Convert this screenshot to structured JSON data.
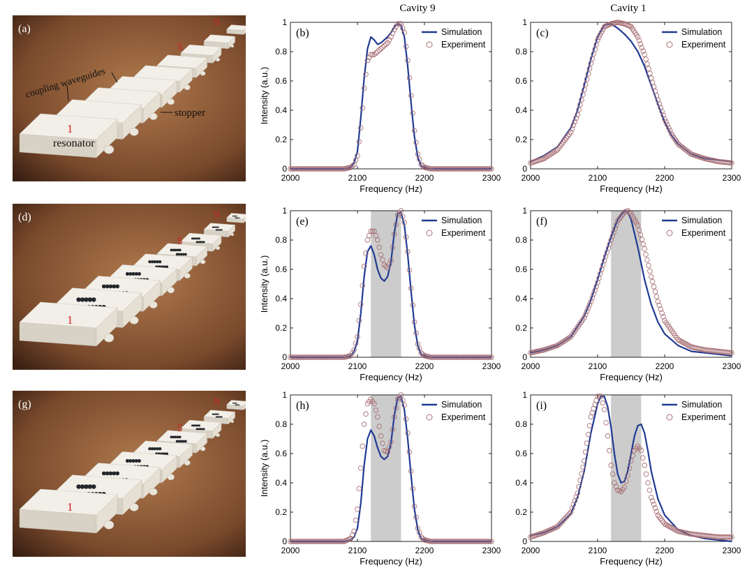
{
  "column_titles": [
    "Cavity 9",
    "Cavity 1"
  ],
  "photos": [
    {
      "label": "(a)",
      "texts": {
        "n1": "1",
        "n5": "5",
        "n9": "9",
        "coupling": "coupling waveguides",
        "stopper": "stopper",
        "resonator": "resonator"
      },
      "blocks": false
    },
    {
      "label": "(d)",
      "texts": {
        "n1": "1",
        "n5": "5",
        "n9": "9"
      },
      "blocks": true
    },
    {
      "label": "(g)",
      "texts": {
        "n1": "1",
        "n5": "5",
        "n9": "9"
      },
      "blocks": true
    }
  ],
  "colors": {
    "simulation": "#1f3a93",
    "experiment": "#a86f74",
    "band": "#cccccc",
    "photo_bg": "#7a4a2c",
    "block": "#f2efe8",
    "red_label": "#d42020"
  },
  "chart_data": [
    {
      "panel": "(b)",
      "type": "line",
      "title": "Cavity 9",
      "xlabel": "Frequency (Hz)",
      "ylabel": "Intensity (a.u.)",
      "xlim": [
        2000,
        2300
      ],
      "ylim": [
        0,
        1
      ],
      "xticks": [
        "2000",
        "2100",
        "2200",
        "2300"
      ],
      "yticks": [
        "0",
        "0.2",
        "0.4",
        "0.6",
        "0.8",
        "1"
      ],
      "legend": "top-right",
      "band": null,
      "series": [
        {
          "name": "Simulation",
          "style": "line",
          "x": [
            2000,
            2080,
            2090,
            2095,
            2100,
            2105,
            2110,
            2115,
            2120,
            2125,
            2130,
            2135,
            2140,
            2145,
            2150,
            2155,
            2160,
            2165,
            2170,
            2175,
            2180,
            2185,
            2190,
            2195,
            2200,
            2210,
            2300
          ],
          "y": [
            0,
            0,
            0.01,
            0.04,
            0.12,
            0.35,
            0.62,
            0.82,
            0.9,
            0.88,
            0.85,
            0.86,
            0.88,
            0.9,
            0.93,
            0.97,
            0.99,
            0.98,
            0.9,
            0.7,
            0.45,
            0.22,
            0.08,
            0.02,
            0.01,
            0,
            0
          ]
        },
        {
          "name": "Experiment",
          "style": "markers",
          "x": [
            2000,
            2080,
            2090,
            2095,
            2100,
            2105,
            2110,
            2115,
            2120,
            2125,
            2130,
            2135,
            2140,
            2145,
            2150,
            2155,
            2160,
            2165,
            2170,
            2175,
            2180,
            2185,
            2190,
            2195,
            2200,
            2210,
            2300
          ],
          "y": [
            0,
            0,
            0.01,
            0.03,
            0.09,
            0.28,
            0.55,
            0.74,
            0.78,
            0.78,
            0.8,
            0.82,
            0.84,
            0.86,
            0.9,
            0.95,
            0.99,
            0.99,
            0.93,
            0.74,
            0.5,
            0.26,
            0.1,
            0.03,
            0.01,
            0,
            0
          ]
        }
      ]
    },
    {
      "panel": "(c)",
      "type": "line",
      "title": "Cavity 1",
      "xlabel": "Frequency (Hz)",
      "ylabel": "",
      "xlim": [
        2000,
        2300
      ],
      "ylim": [
        0,
        1
      ],
      "xticks": [
        "2000",
        "2100",
        "2200",
        "2300"
      ],
      "yticks": [
        "0",
        "0.2",
        "0.4",
        "0.6",
        "0.8",
        "1"
      ],
      "legend": "top-right",
      "band": null,
      "series": [
        {
          "name": "Simulation",
          "style": "line",
          "x": [
            2000,
            2020,
            2040,
            2060,
            2070,
            2080,
            2090,
            2100,
            2110,
            2120,
            2130,
            2140,
            2150,
            2160,
            2170,
            2180,
            2190,
            2200,
            2210,
            2220,
            2240,
            2260,
            2280,
            2300
          ],
          "y": [
            0.05,
            0.09,
            0.15,
            0.28,
            0.4,
            0.57,
            0.75,
            0.9,
            0.98,
            0.99,
            0.96,
            0.92,
            0.87,
            0.8,
            0.7,
            0.57,
            0.44,
            0.32,
            0.23,
            0.17,
            0.1,
            0.07,
            0.06,
            0.05
          ]
        },
        {
          "name": "Experiment",
          "style": "markers",
          "x": [
            2000,
            2020,
            2040,
            2060,
            2070,
            2080,
            2090,
            2100,
            2110,
            2120,
            2130,
            2140,
            2150,
            2160,
            2170,
            2180,
            2190,
            2200,
            2210,
            2220,
            2240,
            2260,
            2280,
            2300
          ],
          "y": [
            0.04,
            0.07,
            0.13,
            0.25,
            0.37,
            0.54,
            0.72,
            0.88,
            0.97,
            0.99,
            1.0,
            0.99,
            0.97,
            0.9,
            0.78,
            0.62,
            0.47,
            0.34,
            0.24,
            0.17,
            0.1,
            0.07,
            0.05,
            0.04
          ]
        }
      ]
    },
    {
      "panel": "(e)",
      "type": "line",
      "title": "",
      "xlabel": "Frequency (Hz)",
      "ylabel": "Intensity (a.u.)",
      "xlim": [
        2000,
        2300
      ],
      "ylim": [
        0,
        1
      ],
      "xticks": [
        "2000",
        "2100",
        "2200",
        "2300"
      ],
      "yticks": [
        "0",
        "0.2",
        "0.4",
        "0.6",
        "0.8",
        "1"
      ],
      "legend": "top-right",
      "band": [
        2120,
        2165
      ],
      "series": [
        {
          "name": "Simulation",
          "style": "line",
          "x": [
            2000,
            2080,
            2090,
            2095,
            2100,
            2105,
            2110,
            2115,
            2120,
            2125,
            2130,
            2135,
            2140,
            2145,
            2150,
            2155,
            2160,
            2165,
            2170,
            2175,
            2180,
            2185,
            2190,
            2195,
            2200,
            2210,
            2300
          ],
          "y": [
            0,
            0,
            0.01,
            0.04,
            0.11,
            0.3,
            0.55,
            0.72,
            0.76,
            0.7,
            0.6,
            0.54,
            0.52,
            0.55,
            0.65,
            0.85,
            0.98,
            0.99,
            0.9,
            0.7,
            0.45,
            0.22,
            0.08,
            0.02,
            0.01,
            0,
            0
          ]
        },
        {
          "name": "Experiment",
          "style": "markers",
          "x": [
            2000,
            2080,
            2090,
            2095,
            2100,
            2105,
            2110,
            2115,
            2120,
            2125,
            2130,
            2135,
            2140,
            2145,
            2150,
            2155,
            2160,
            2165,
            2170,
            2175,
            2180,
            2185,
            2190,
            2195,
            2200,
            2210,
            2300
          ],
          "y": [
            0,
            0,
            0.01,
            0.05,
            0.14,
            0.36,
            0.62,
            0.8,
            0.86,
            0.86,
            0.8,
            0.7,
            0.63,
            0.61,
            0.66,
            0.84,
            0.97,
            1.0,
            0.92,
            0.72,
            0.47,
            0.24,
            0.09,
            0.03,
            0.01,
            0,
            0
          ]
        }
      ]
    },
    {
      "panel": "(f)",
      "type": "line",
      "title": "",
      "xlabel": "Frequency (Hz)",
      "ylabel": "",
      "xlim": [
        2000,
        2300
      ],
      "ylim": [
        0,
        1
      ],
      "xticks": [
        "2000",
        "2100",
        "2200",
        "2300"
      ],
      "yticks": [
        "0",
        "0.2",
        "0.4",
        "0.6",
        "0.8",
        "1"
      ],
      "legend": "top-right",
      "band": [
        2120,
        2165
      ],
      "series": [
        {
          "name": "Simulation",
          "style": "line",
          "x": [
            2000,
            2020,
            2040,
            2060,
            2080,
            2090,
            2100,
            2110,
            2120,
            2130,
            2140,
            2145,
            2150,
            2160,
            2170,
            2180,
            2190,
            2200,
            2220,
            2240,
            2260,
            2280,
            2300
          ],
          "y": [
            0.03,
            0.05,
            0.08,
            0.14,
            0.28,
            0.39,
            0.53,
            0.68,
            0.82,
            0.94,
            1.0,
            0.99,
            0.94,
            0.75,
            0.53,
            0.36,
            0.24,
            0.16,
            0.08,
            0.04,
            0.03,
            0.02,
            0.01
          ]
        },
        {
          "name": "Experiment",
          "style": "markers",
          "x": [
            2000,
            2020,
            2040,
            2060,
            2080,
            2090,
            2100,
            2110,
            2120,
            2130,
            2140,
            2145,
            2150,
            2160,
            2170,
            2180,
            2190,
            2200,
            2220,
            2240,
            2260,
            2280,
            2300
          ],
          "y": [
            0.03,
            0.05,
            0.08,
            0.14,
            0.27,
            0.38,
            0.51,
            0.66,
            0.8,
            0.93,
            0.99,
            1.0,
            0.98,
            0.9,
            0.74,
            0.55,
            0.38,
            0.25,
            0.12,
            0.07,
            0.05,
            0.04,
            0.03
          ]
        }
      ]
    },
    {
      "panel": "(h)",
      "type": "line",
      "title": "",
      "xlabel": "Frequency (Hz)",
      "ylabel": "Intensity (a.u.)",
      "xlim": [
        2000,
        2300
      ],
      "ylim": [
        0,
        1
      ],
      "xticks": [
        "2000",
        "2100",
        "2200",
        "2300"
      ],
      "yticks": [
        "0",
        "0.2",
        "0.4",
        "0.6",
        "0.8",
        "1"
      ],
      "legend": "top-right",
      "band": [
        2120,
        2165
      ],
      "series": [
        {
          "name": "Simulation",
          "style": "line",
          "x": [
            2000,
            2080,
            2090,
            2095,
            2100,
            2105,
            2110,
            2115,
            2120,
            2125,
            2130,
            2135,
            2140,
            2145,
            2150,
            2155,
            2160,
            2165,
            2170,
            2175,
            2180,
            2185,
            2190,
            2195,
            2200,
            2210,
            2300
          ],
          "y": [
            0,
            0,
            0.01,
            0.03,
            0.09,
            0.26,
            0.52,
            0.7,
            0.76,
            0.72,
            0.64,
            0.58,
            0.56,
            0.58,
            0.67,
            0.86,
            0.98,
            0.99,
            0.9,
            0.7,
            0.45,
            0.22,
            0.08,
            0.02,
            0.01,
            0,
            0
          ]
        },
        {
          "name": "Experiment",
          "style": "markers",
          "x": [
            2000,
            2080,
            2090,
            2095,
            2100,
            2105,
            2110,
            2115,
            2120,
            2125,
            2130,
            2135,
            2140,
            2145,
            2150,
            2155,
            2160,
            2165,
            2170,
            2175,
            2180,
            2185,
            2190,
            2195,
            2200,
            2210,
            2300
          ],
          "y": [
            0,
            0,
            0.02,
            0.07,
            0.22,
            0.5,
            0.8,
            0.94,
            0.97,
            0.94,
            0.85,
            0.72,
            0.62,
            0.61,
            0.68,
            0.85,
            0.97,
            1.0,
            0.93,
            0.74,
            0.48,
            0.24,
            0.09,
            0.03,
            0.01,
            0,
            0
          ]
        }
      ]
    },
    {
      "panel": "(i)",
      "type": "line",
      "title": "",
      "xlabel": "Frequency (Hz)",
      "ylabel": "",
      "xlim": [
        2000,
        2300
      ],
      "ylim": [
        0,
        1
      ],
      "xticks": [
        "2000",
        "2100",
        "2200",
        "2300"
      ],
      "yticks": [
        "0",
        "0.2",
        "0.4",
        "0.6",
        "0.8",
        "1"
      ],
      "legend": "top-right",
      "band": [
        2120,
        2165
      ],
      "series": [
        {
          "name": "Simulation",
          "style": "line",
          "x": [
            2000,
            2020,
            2040,
            2060,
            2070,
            2080,
            2090,
            2100,
            2105,
            2110,
            2115,
            2120,
            2125,
            2130,
            2135,
            2140,
            2145,
            2150,
            2155,
            2160,
            2165,
            2170,
            2175,
            2180,
            2190,
            2200,
            2220,
            2240,
            2260,
            2280,
            2300
          ],
          "y": [
            0.04,
            0.06,
            0.1,
            0.19,
            0.3,
            0.48,
            0.74,
            0.94,
            0.99,
            0.99,
            0.92,
            0.78,
            0.6,
            0.46,
            0.4,
            0.41,
            0.48,
            0.6,
            0.72,
            0.79,
            0.8,
            0.74,
            0.62,
            0.48,
            0.29,
            0.18,
            0.08,
            0.04,
            0.02,
            0.01,
            0.0
          ]
        },
        {
          "name": "Experiment",
          "style": "markers",
          "x": [
            2000,
            2020,
            2040,
            2060,
            2070,
            2080,
            2090,
            2100,
            2105,
            2110,
            2115,
            2120,
            2125,
            2130,
            2135,
            2140,
            2145,
            2150,
            2155,
            2160,
            2165,
            2170,
            2175,
            2180,
            2190,
            2200,
            2220,
            2240,
            2260,
            2280,
            2300
          ],
          "y": [
            0.03,
            0.06,
            0.1,
            0.2,
            0.33,
            0.55,
            0.85,
            0.99,
            0.99,
            0.9,
            0.72,
            0.52,
            0.4,
            0.35,
            0.34,
            0.37,
            0.45,
            0.55,
            0.62,
            0.65,
            0.62,
            0.52,
            0.4,
            0.3,
            0.18,
            0.12,
            0.07,
            0.05,
            0.04,
            0.03,
            0.03
          ]
        }
      ]
    }
  ]
}
